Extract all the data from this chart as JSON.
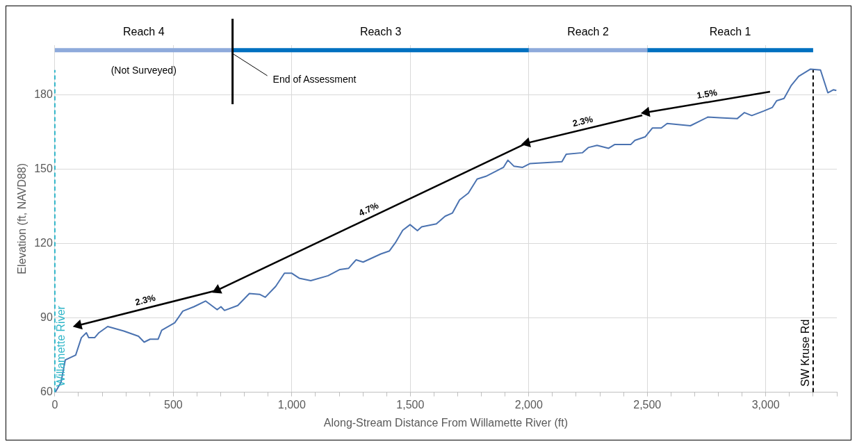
{
  "chart_data": {
    "type": "line",
    "xlabel": "Along-Stream Distance From Willamette River (ft)",
    "ylabel": "Elevation (ft, NAVD88)",
    "xlim": [
      0,
      3300
    ],
    "ylim": [
      60,
      200
    ],
    "xticks": [
      0,
      {
        "value": 100,
        "label": null
      },
      {
        "value": 200,
        "label": null
      },
      {
        "value": 300,
        "label": null
      },
      {
        "value": 400,
        "label": null
      },
      500,
      {
        "value": 600,
        "label": null
      },
      {
        "value": 700,
        "label": null
      },
      {
        "value": 800,
        "label": null
      },
      {
        "value": 900,
        "label": null
      },
      {
        "value": 1000,
        "label": "1,000"
      },
      {
        "value": 1100,
        "label": null
      },
      {
        "value": 1200,
        "label": null
      },
      {
        "value": 1300,
        "label": null
      },
      {
        "value": 1400,
        "label": null
      },
      {
        "value": 1500,
        "label": "1,500"
      },
      {
        "value": 1600,
        "label": null
      },
      {
        "value": 1700,
        "label": null
      },
      {
        "value": 1800,
        "label": null
      },
      {
        "value": 1900,
        "label": null
      },
      {
        "value": 2000,
        "label": "2,000"
      },
      {
        "value": 2100,
        "label": null
      },
      {
        "value": 2200,
        "label": null
      },
      {
        "value": 2300,
        "label": null
      },
      {
        "value": 2400,
        "label": null
      },
      {
        "value": 2500,
        "label": "2,500"
      },
      {
        "value": 2600,
        "label": null
      },
      {
        "value": 2700,
        "label": null
      },
      {
        "value": 2800,
        "label": null
      },
      {
        "value": 2900,
        "label": null
      },
      {
        "value": 3000,
        "label": "3,000"
      },
      {
        "value": 3100,
        "label": null
      },
      {
        "value": 3200,
        "label": null
      },
      {
        "value": 3300,
        "label": null
      }
    ],
    "yticks": [
      60,
      90,
      120,
      150,
      180
    ],
    "grid": true,
    "legend": false,
    "series": [
      {
        "name": "Reach 4",
        "color": "#8eaadb",
        "x": [
          0,
          750
        ],
        "values": [
          198,
          198
        ]
      },
      {
        "name": "Reach 3",
        "color": "#0070c0",
        "x": [
          750,
          2000
        ],
        "values": [
          198,
          198
        ]
      },
      {
        "name": "Reach 2",
        "color": "#8eaadb",
        "x": [
          2000,
          2500
        ],
        "values": [
          198,
          198
        ]
      },
      {
        "name": "Reach 1",
        "color": "#0070c0",
        "x": [
          2500,
          3200
        ],
        "values": [
          198,
          198
        ]
      },
      {
        "color": "#4a72b0",
        "x": [
          2,
          26,
          44,
          88,
          112,
          133,
          143,
          168,
          186,
          223,
          291,
          353,
          377,
          402,
          436,
          451,
          506,
          540,
          587,
          636,
          685,
          701,
          716,
          772,
          821,
          864,
          888,
          932,
          969,
          1000,
          1031,
          1080,
          1153,
          1203,
          1240,
          1271,
          1301,
          1376,
          1412,
          1437,
          1468,
          1499,
          1530,
          1548,
          1610,
          1647,
          1678,
          1708,
          1745,
          1782,
          1819,
          1869,
          1893,
          1912,
          1937,
          1974,
          2004,
          2140,
          2158,
          2226,
          2251,
          2288,
          2337,
          2362,
          2430,
          2448,
          2491,
          2522,
          2559,
          2584,
          2682,
          2756,
          2806,
          2880,
          2910,
          2941,
          2991,
          3028,
          3046,
          3077,
          3108,
          3139,
          3188,
          3231,
          3262,
          3286,
          3298
        ],
        "values": [
          60,
          64,
          73,
          75,
          82,
          84,
          82,
          82,
          84,
          86.5,
          84.7,
          82.6,
          80.2,
          81.4,
          81.4,
          85,
          88,
          92.7,
          94.5,
          96.8,
          93.3,
          94.5,
          93,
          95,
          99.8,
          99.5,
          98.3,
          102.7,
          108,
          108,
          106,
          105,
          107,
          109.5,
          110,
          113.4,
          112.5,
          115.8,
          117,
          120.3,
          125.3,
          127.6,
          125.2,
          126.7,
          127.9,
          131,
          132.3,
          137.6,
          140.3,
          146,
          147.1,
          149.5,
          150.7,
          153.6,
          151.2,
          150.7,
          152.2,
          153,
          156,
          156.6,
          158.7,
          159.6,
          158.4,
          159.9,
          159.9,
          161.6,
          163,
          166.6,
          166.6,
          168.4,
          167.5,
          171,
          170.7,
          170.4,
          172.8,
          171.6,
          173.4,
          174.9,
          177.6,
          178.5,
          183.8,
          187.4,
          190.3,
          190,
          180.8,
          182,
          181.7
        ]
      },
      {
        "color": "#000000",
        "marker": "triangle",
        "x": [
          3018,
          2497
        ],
        "values": [
          181.2,
          172.9
        ]
      },
      {
        "color": "#000000",
        "marker": "triangle",
        "x": [
          2479,
          1992
        ],
        "values": [
          171.7,
          160.5
        ]
      },
      {
        "color": "#000000",
        "marker": "triangle",
        "x": [
          1992,
          686
        ],
        "values": [
          160.5,
          101.2
        ]
      },
      {
        "color": "#000000",
        "marker": "triangle",
        "x": [
          680,
          100
        ],
        "values": [
          101,
          87
        ]
      }
    ],
    "annotations": [
      "1.5%",
      "2.3%",
      "4.7%",
      "2.3%",
      "(Not Surveyed)"
    ],
    "ref_lines": [
      {
        "axis": "x",
        "value": 0,
        "label": "Willamette River",
        "color": "#2fb5c8",
        "line_style": "dashed"
      },
      {
        "axis": "x",
        "value": 750,
        "label": "End of Assessment",
        "color": "#000000",
        "line_style": "solid"
      },
      {
        "axis": "x",
        "value": 3200,
        "label": "SW Kruse Rd",
        "color": "#000000",
        "line_style": "dashed"
      }
    ]
  }
}
